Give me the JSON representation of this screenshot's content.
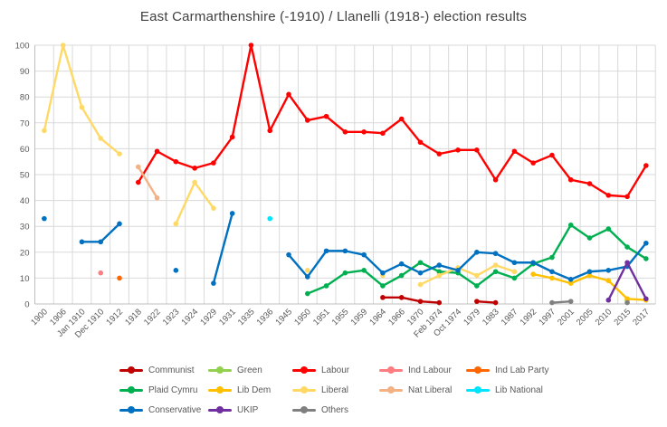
{
  "title": "East Carmarthenshire (-1910) / Llanelli (1918-) election results",
  "chart_data": {
    "type": "line",
    "title": "East Carmarthenshire (-1910) / Llanelli (1918-) election results",
    "xlabel": "",
    "ylabel": "",
    "grid": true,
    "legend_position": "bottom",
    "y_axis": {
      "min": 0,
      "max": 100,
      "step": 10,
      "tick_labels": [
        "0",
        "10",
        "20",
        "30",
        "40",
        "50",
        "60",
        "70",
        "80",
        "90",
        "100"
      ]
    },
    "categories": [
      "1900",
      "1906",
      "Jan 1910",
      "Dec 1910",
      "1912",
      "1918",
      "1922",
      "1923",
      "1924",
      "1929",
      "1931",
      "1935",
      "1936",
      "1945",
      "1950",
      "1951",
      "1955",
      "1959",
      "1964",
      "1966",
      "1970",
      "Feb 1974",
      "Oct 1974",
      "1979",
      "1983",
      "1987",
      "1992",
      "1997",
      "2001",
      "2005",
      "2010",
      "2015",
      "2017"
    ],
    "series": [
      {
        "name": "Communist",
        "color": "#C00000",
        "values": [
          null,
          null,
          null,
          null,
          null,
          null,
          null,
          null,
          null,
          null,
          null,
          null,
          null,
          null,
          null,
          null,
          null,
          null,
          2.5,
          2.5,
          1,
          0.5,
          null,
          1,
          0.5,
          null,
          null,
          null,
          null,
          null,
          null,
          null,
          null
        ]
      },
      {
        "name": "Green",
        "color": "#92D050",
        "values": [
          null,
          null,
          null,
          null,
          null,
          null,
          null,
          null,
          null,
          null,
          null,
          null,
          null,
          null,
          null,
          null,
          null,
          null,
          null,
          null,
          null,
          null,
          null,
          null,
          null,
          null,
          null,
          null,
          null,
          null,
          null,
          1.5,
          null
        ]
      },
      {
        "name": "Labour",
        "color": "#FF0000",
        "values": [
          null,
          null,
          null,
          null,
          null,
          47,
          59,
          55,
          52.5,
          54.5,
          64.5,
          100,
          67,
          81,
          71,
          72.5,
          66.5,
          66.5,
          66,
          71.5,
          62.5,
          58,
          59.5,
          59.5,
          48,
          59,
          54.5,
          57.5,
          48,
          46.5,
          42,
          41.5,
          53.5
        ]
      },
      {
        "name": "Ind Labour",
        "color": "#FF7C80",
        "values": [
          null,
          null,
          null,
          12,
          null,
          null,
          null,
          null,
          null,
          null,
          null,
          null,
          null,
          null,
          null,
          null,
          null,
          null,
          null,
          null,
          null,
          null,
          null,
          null,
          null,
          null,
          null,
          null,
          null,
          null,
          null,
          null,
          null
        ]
      },
      {
        "name": "Ind Lab Party",
        "color": "#FF6600",
        "values": [
          null,
          null,
          null,
          null,
          10,
          null,
          null,
          null,
          null,
          null,
          null,
          null,
          null,
          null,
          null,
          null,
          null,
          null,
          null,
          null,
          null,
          null,
          null,
          null,
          null,
          null,
          null,
          null,
          null,
          null,
          null,
          null,
          null
        ]
      },
      {
        "name": "Plaid Cymru",
        "color": "#00B050",
        "values": [
          null,
          null,
          null,
          null,
          null,
          null,
          null,
          null,
          null,
          null,
          null,
          null,
          null,
          null,
          4,
          7,
          12,
          13,
          7,
          11,
          16,
          12.5,
          12,
          7,
          12.5,
          10,
          15.5,
          18,
          30.5,
          25.5,
          29,
          22,
          17.5
        ]
      },
      {
        "name": "Lib Dem",
        "color": "#FFC000",
        "values": [
          null,
          null,
          null,
          null,
          null,
          null,
          null,
          null,
          null,
          null,
          null,
          null,
          null,
          null,
          null,
          null,
          null,
          null,
          null,
          null,
          null,
          null,
          null,
          null,
          null,
          null,
          11.5,
          10,
          8,
          11,
          9,
          2,
          1.5
        ]
      },
      {
        "name": "Liberal",
        "color": "#FFD966",
        "values": [
          67,
          100,
          76,
          64,
          58,
          null,
          null,
          31,
          47,
          37,
          null,
          null,
          null,
          null,
          13,
          null,
          null,
          null,
          11,
          null,
          7.5,
          11,
          14,
          11,
          15,
          12.5,
          null,
          null,
          null,
          null,
          null,
          null,
          null
        ]
      },
      {
        "name": "Nat Liberal",
        "color": "#F4B183",
        "values": [
          null,
          null,
          null,
          null,
          null,
          53,
          41,
          null,
          null,
          null,
          null,
          null,
          null,
          null,
          null,
          null,
          null,
          null,
          null,
          null,
          null,
          null,
          null,
          null,
          null,
          null,
          null,
          null,
          null,
          null,
          null,
          null,
          null
        ]
      },
      {
        "name": "Lib National",
        "color": "#00E5FF",
        "values": [
          null,
          null,
          null,
          null,
          null,
          null,
          null,
          null,
          null,
          null,
          null,
          null,
          33,
          null,
          null,
          null,
          null,
          null,
          null,
          null,
          null,
          null,
          null,
          null,
          null,
          null,
          null,
          null,
          null,
          null,
          null,
          null,
          null
        ]
      },
      {
        "name": "Conservative",
        "color": "#0070C0",
        "values": [
          33,
          null,
          24,
          24,
          31,
          null,
          null,
          13,
          null,
          8,
          35,
          null,
          null,
          19,
          10.5,
          20.5,
          20.5,
          19,
          12,
          15.5,
          12,
          15,
          13,
          20,
          19.5,
          16,
          16,
          12.5,
          9.5,
          12.5,
          13,
          14.5,
          23.5
        ]
      },
      {
        "name": "UKIP",
        "color": "#7030A0",
        "values": [
          null,
          null,
          null,
          null,
          null,
          null,
          null,
          null,
          null,
          null,
          null,
          null,
          null,
          null,
          null,
          null,
          null,
          null,
          null,
          null,
          null,
          null,
          null,
          null,
          null,
          null,
          null,
          null,
          null,
          null,
          1.5,
          16,
          2
        ]
      },
      {
        "name": "Others",
        "color": "#808080",
        "values": [
          null,
          null,
          null,
          null,
          null,
          null,
          null,
          null,
          null,
          null,
          null,
          null,
          null,
          null,
          null,
          null,
          null,
          null,
          null,
          null,
          null,
          null,
          null,
          null,
          null,
          null,
          null,
          0.5,
          1,
          null,
          null,
          0.5,
          null
        ]
      }
    ]
  }
}
